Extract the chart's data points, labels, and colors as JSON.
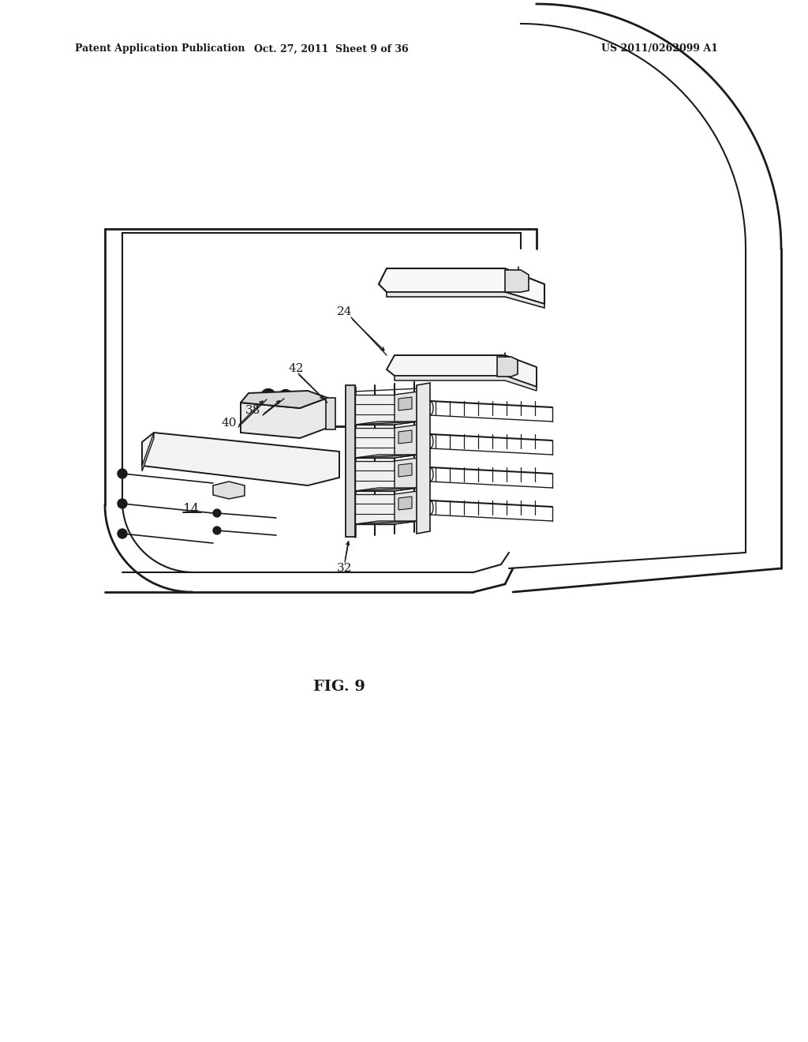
{
  "background_color": "#ffffff",
  "line_color": "#1a1a1a",
  "header_left": "Patent Application Publication",
  "header_mid": "Oct. 27, 2011  Sheet 9 of 36",
  "header_right": "US 2011/0262099 A1",
  "fig_caption": "FIG. 9",
  "header_fontsize": 9,
  "caption_fontsize": 14,
  "ref_fontsize": 11
}
